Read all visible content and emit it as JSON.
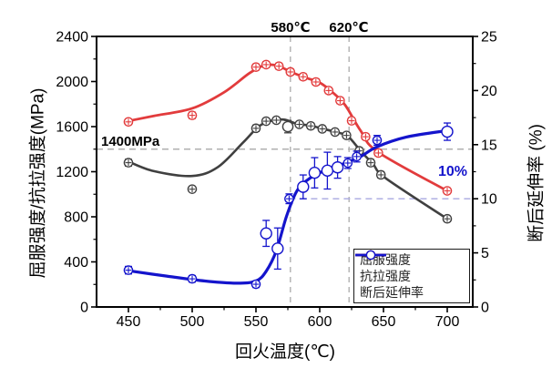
{
  "chart_data": {
    "type": "line",
    "title": "",
    "xlabel": "回火温度(℃)",
    "ylabel_left": "屈服强度/抗拉强度(MPa)",
    "ylabel_right": "断后延伸率 (%)",
    "x_range": [
      425,
      720
    ],
    "y_left_range": [
      0,
      2400
    ],
    "y_right_range": [
      0,
      25
    ],
    "x_ticks": [
      450,
      500,
      550,
      600,
      650,
      700
    ],
    "x_minor_ticks": [
      475,
      525,
      575,
      625,
      675
    ],
    "y_left_ticks": [
      0,
      400,
      800,
      1200,
      1600,
      2000,
      2400
    ],
    "y_left_minor_ticks": [
      200,
      600,
      1000,
      1400,
      1800,
      2200
    ],
    "y_right_ticks": [
      0,
      5,
      10,
      15,
      20,
      25
    ],
    "y_right_minor_ticks": [
      2.5,
      7.5,
      12.5,
      17.5,
      22.5
    ],
    "grid": false,
    "legend_position": "bottom-right",
    "reference_lines": {
      "vertical": [
        {
          "x": 577,
          "label": "580℃",
          "color": "#b0b0b0"
        },
        {
          "x": 623,
          "label": "620℃",
          "color": "#b0b0b0"
        }
      ],
      "horizontal_left": {
        "y": 1400,
        "label": "1400MPa",
        "color": "#b0b0b0"
      },
      "horizontal_right": {
        "y": 10,
        "label": "10%",
        "x_start": 576,
        "color": "#a8a8e0",
        "label_color": "#1515cc"
      }
    },
    "series": [
      {
        "name": "屈服强度",
        "axis": "left",
        "color": "#404040",
        "points": [
          [
            450,
            1280,
            30,
            "+"
          ],
          [
            500,
            1045,
            22,
            "+"
          ],
          [
            550,
            1585,
            28,
            "+"
          ],
          [
            558,
            1648,
            24,
            "+"
          ],
          [
            566,
            1657,
            24,
            "+"
          ],
          [
            575,
            1600,
            55,
            "o"
          ],
          [
            584,
            1620,
            24,
            "+"
          ],
          [
            593,
            1606,
            24,
            "+"
          ],
          [
            602,
            1580,
            24,
            "+"
          ],
          [
            612,
            1552,
            24,
            "+"
          ],
          [
            621,
            1522,
            24,
            "+"
          ],
          [
            631,
            1385,
            28,
            "+"
          ],
          [
            640,
            1280,
            28,
            "+"
          ],
          [
            648,
            1172,
            28,
            "+"
          ],
          [
            700,
            782,
            24,
            "+"
          ]
        ],
        "curve": [
          [
            450,
            1290
          ],
          [
            470,
            1205
          ],
          [
            500,
            1162
          ],
          [
            520,
            1240
          ],
          [
            540,
            1460
          ],
          [
            552,
            1600
          ],
          [
            562,
            1652
          ],
          [
            572,
            1662
          ],
          [
            582,
            1625
          ],
          [
            592,
            1610
          ],
          [
            602,
            1583
          ],
          [
            612,
            1553
          ],
          [
            622,
            1515
          ],
          [
            632,
            1385
          ],
          [
            642,
            1265
          ],
          [
            652,
            1140
          ],
          [
            700,
            782
          ]
        ]
      },
      {
        "name": "抗拉强度",
        "axis": "left",
        "color": "#e23b3c",
        "points": [
          [
            450,
            1642,
            24,
            "+"
          ],
          [
            500,
            1700,
            28,
            "+"
          ],
          [
            550,
            2128,
            26,
            "+"
          ],
          [
            558,
            2150,
            26,
            "+"
          ],
          [
            568,
            2136,
            26,
            "+"
          ],
          [
            577,
            2085,
            26,
            "+"
          ],
          [
            587,
            2042,
            26,
            "+"
          ],
          [
            597,
            1996,
            26,
            "+"
          ],
          [
            607,
            1920,
            26,
            "+"
          ],
          [
            616,
            1830,
            26,
            "+"
          ],
          [
            625,
            1652,
            26,
            "+"
          ],
          [
            636,
            1510,
            26,
            "+"
          ],
          [
            646,
            1366,
            26,
            "+"
          ],
          [
            700,
            1030,
            24,
            "+"
          ]
        ],
        "curve": [
          [
            450,
            1650
          ],
          [
            470,
            1695
          ],
          [
            500,
            1762
          ],
          [
            525,
            1905
          ],
          [
            545,
            2075
          ],
          [
            557,
            2145
          ],
          [
            567,
            2140
          ],
          [
            578,
            2082
          ],
          [
            590,
            2030
          ],
          [
            600,
            1990
          ],
          [
            610,
            1905
          ],
          [
            620,
            1790
          ],
          [
            632,
            1565
          ],
          [
            646,
            1372
          ],
          [
            700,
            1030
          ]
        ]
      },
      {
        "name": "断后延伸率",
        "axis": "right",
        "color": "#1414cc",
        "points": [
          [
            450,
            3.4,
            0.35,
            "+"
          ],
          [
            500,
            2.6,
            0.3,
            "+"
          ],
          [
            550,
            2.1,
            0.3,
            "+"
          ],
          [
            558,
            6.8,
            1.2,
            "o"
          ],
          [
            567,
            5.4,
            1.9,
            "o"
          ],
          [
            576,
            10.0,
            0.45,
            "+"
          ],
          [
            587,
            11.1,
            1.1,
            "o"
          ],
          [
            596,
            12.4,
            1.4,
            "o"
          ],
          [
            606,
            12.6,
            1.7,
            "o"
          ],
          [
            614,
            12.9,
            1.0,
            "o"
          ],
          [
            622,
            13.3,
            0.5,
            "+"
          ],
          [
            629,
            13.9,
            0.5,
            "+"
          ],
          [
            645,
            15.4,
            0.45,
            "+"
          ],
          [
            700,
            16.2,
            0.8,
            "o"
          ]
        ],
        "curve": [
          [
            450,
            3.35
          ],
          [
            480,
            2.85
          ],
          [
            510,
            2.4
          ],
          [
            535,
            2.2
          ],
          [
            550,
            2.4
          ],
          [
            558,
            3.3
          ],
          [
            566,
            5.2
          ],
          [
            574,
            8.4
          ],
          [
            582,
            10.7
          ],
          [
            590,
            11.7
          ],
          [
            600,
            12.4
          ],
          [
            610,
            12.8
          ],
          [
            620,
            13.3
          ],
          [
            632,
            13.9
          ],
          [
            645,
            14.8
          ],
          [
            668,
            15.7
          ],
          [
            700,
            16.3
          ]
        ]
      }
    ]
  }
}
